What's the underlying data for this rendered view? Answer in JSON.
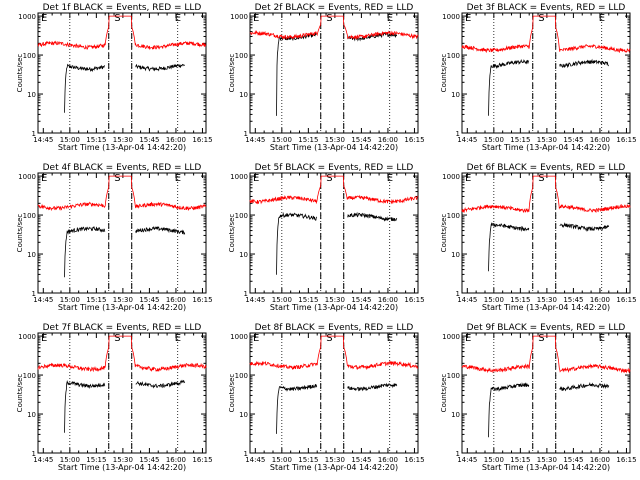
{
  "figure": {
    "shared": {
      "xlabel": "Start Time (13-Apr-04 14:42:20)",
      "ylabel": "Counts/sec",
      "xticks": [
        "14:45",
        "15:00",
        "15:15",
        "15:30",
        "15:45",
        "16:00",
        "16:15"
      ],
      "yticks": [
        "1",
        "10",
        "100",
        "1000"
      ],
      "markers": {
        "start": "E",
        "mid": "S",
        "end": "E"
      },
      "colors": {
        "events": "#000000",
        "lld": "#ff0000"
      }
    }
  },
  "chart_data": [
    {
      "type": "line",
      "title": "Det 1f BLACK = Events, RED = LLD",
      "xlabel": "Start Time (13-Apr-04 14:42:20)",
      "ylabel": "Counts/sec",
      "yscale": "log",
      "ylim": [
        1,
        1200
      ],
      "xlim_minutes": [
        0,
        95
      ],
      "series": [
        {
          "name": "Events",
          "color": "#000000",
          "level": 50,
          "start": 15
        },
        {
          "name": "LLD",
          "color": "#ff0000",
          "level": 180,
          "start": 0
        }
      ],
      "saa_minutes": [
        40,
        53
      ],
      "dotted_lines_minutes": [
        18,
        40,
        53,
        79
      ],
      "peak": 1000
    },
    {
      "type": "line",
      "title": "Det 2f BLACK = Events, RED = LLD",
      "xlabel": "Start Time (13-Apr-04 14:42:20)",
      "ylabel": "Counts/sec",
      "yscale": "log",
      "ylim": [
        1,
        1200
      ],
      "xlim_minutes": [
        0,
        95
      ],
      "series": [
        {
          "name": "Events",
          "color": "#000000",
          "level": 300,
          "start": 15
        },
        {
          "name": "LLD",
          "color": "#ff0000",
          "level": 330,
          "start": 0
        }
      ],
      "saa_minutes": [
        40,
        53
      ],
      "dotted_lines_minutes": [
        18,
        40,
        53,
        79
      ],
      "peak": 1000
    },
    {
      "type": "line",
      "title": "Det 3f BLACK = Events, RED = LLD",
      "xlabel": "Start Time (13-Apr-04 14:42:20)",
      "ylabel": "Counts/sec",
      "yscale": "log",
      "ylim": [
        1,
        1200
      ],
      "xlim_minutes": [
        0,
        95
      ],
      "series": [
        {
          "name": "Events",
          "color": "#000000",
          "level": 60,
          "start": 15
        },
        {
          "name": "LLD",
          "color": "#ff0000",
          "level": 150,
          "start": 0
        }
      ],
      "saa_minutes": [
        40,
        53
      ],
      "dotted_lines_minutes": [
        18,
        40,
        53,
        79
      ],
      "peak": 1000
    },
    {
      "type": "line",
      "title": "Det 4f BLACK = Events, RED = LLD",
      "xlabel": "Start Time (13-Apr-04 14:42:20)",
      "ylabel": "Counts/sec",
      "yscale": "log",
      "ylim": [
        1,
        1200
      ],
      "xlim_minutes": [
        0,
        95
      ],
      "series": [
        {
          "name": "Events",
          "color": "#000000",
          "level": 40,
          "start": 15
        },
        {
          "name": "LLD",
          "color": "#ff0000",
          "level": 170,
          "start": 0
        }
      ],
      "saa_minutes": [
        40,
        53
      ],
      "dotted_lines_minutes": [
        18,
        40,
        53,
        79
      ],
      "peak": 1000
    },
    {
      "type": "line",
      "title": "Det 5f BLACK = Events, RED = LLD",
      "xlabel": "Start Time (13-Apr-04 14:42:20)",
      "ylabel": "Counts/sec",
      "yscale": "log",
      "ylim": [
        1,
        1200
      ],
      "xlim_minutes": [
        0,
        95
      ],
      "series": [
        {
          "name": "Events",
          "color": "#000000",
          "level": 90,
          "start": 15
        },
        {
          "name": "LLD",
          "color": "#ff0000",
          "level": 250,
          "start": 0
        }
      ],
      "saa_minutes": [
        40,
        53
      ],
      "dotted_lines_minutes": [
        18,
        40,
        53,
        79
      ],
      "peak": 1000
    },
    {
      "type": "line",
      "title": "Det 6f BLACK = Events, RED = LLD",
      "xlabel": "Start Time (13-Apr-04 14:42:20)",
      "ylabel": "Counts/sec",
      "yscale": "log",
      "ylim": [
        1,
        1200
      ],
      "xlim_minutes": [
        0,
        95
      ],
      "series": [
        {
          "name": "Events",
          "color": "#000000",
          "level": 50,
          "start": 15
        },
        {
          "name": "LLD",
          "color": "#ff0000",
          "level": 150,
          "start": 0
        }
      ],
      "saa_minutes": [
        40,
        53
      ],
      "dotted_lines_minutes": [
        18,
        40,
        53,
        79
      ],
      "peak": 1000
    },
    {
      "type": "line",
      "title": "Det 7f BLACK = Events, RED = LLD",
      "xlabel": "Start Time (13-Apr-04 14:42:20)",
      "ylabel": "Counts/sec",
      "yscale": "log",
      "ylim": [
        1,
        1200
      ],
      "xlim_minutes": [
        0,
        95
      ],
      "series": [
        {
          "name": "Events",
          "color": "#000000",
          "level": 60,
          "start": 15
        },
        {
          "name": "LLD",
          "color": "#ff0000",
          "level": 160,
          "start": 0
        }
      ],
      "saa_minutes": [
        40,
        53
      ],
      "dotted_lines_minutes": [
        18,
        40,
        53,
        79
      ],
      "peak": 1000
    },
    {
      "type": "line",
      "title": "Det 8f BLACK = Events, RED = LLD",
      "xlabel": "Start Time (13-Apr-04 14:42:20)",
      "ylabel": "Counts/sec",
      "yscale": "log",
      "ylim": [
        1,
        1200
      ],
      "xlim_minutes": [
        0,
        95
      ],
      "series": [
        {
          "name": "Events",
          "color": "#000000",
          "level": 50,
          "start": 15
        },
        {
          "name": "LLD",
          "color": "#ff0000",
          "level": 180,
          "start": 0
        }
      ],
      "saa_minutes": [
        40,
        53
      ],
      "dotted_lines_minutes": [
        18,
        40,
        53,
        79
      ],
      "peak": 1000
    },
    {
      "type": "line",
      "title": "Det 9f BLACK = Events, RED = LLD",
      "xlabel": "Start Time (13-Apr-04 14:42:20)",
      "ylabel": "Counts/sec",
      "yscale": "log",
      "ylim": [
        1,
        1200
      ],
      "xlim_minutes": [
        0,
        95
      ],
      "series": [
        {
          "name": "Events",
          "color": "#000000",
          "level": 50,
          "start": 15
        },
        {
          "name": "LLD",
          "color": "#ff0000",
          "level": 150,
          "start": 0
        }
      ],
      "saa_minutes": [
        40,
        53
      ],
      "dotted_lines_minutes": [
        18,
        40,
        53,
        79
      ],
      "peak": 1000
    }
  ]
}
